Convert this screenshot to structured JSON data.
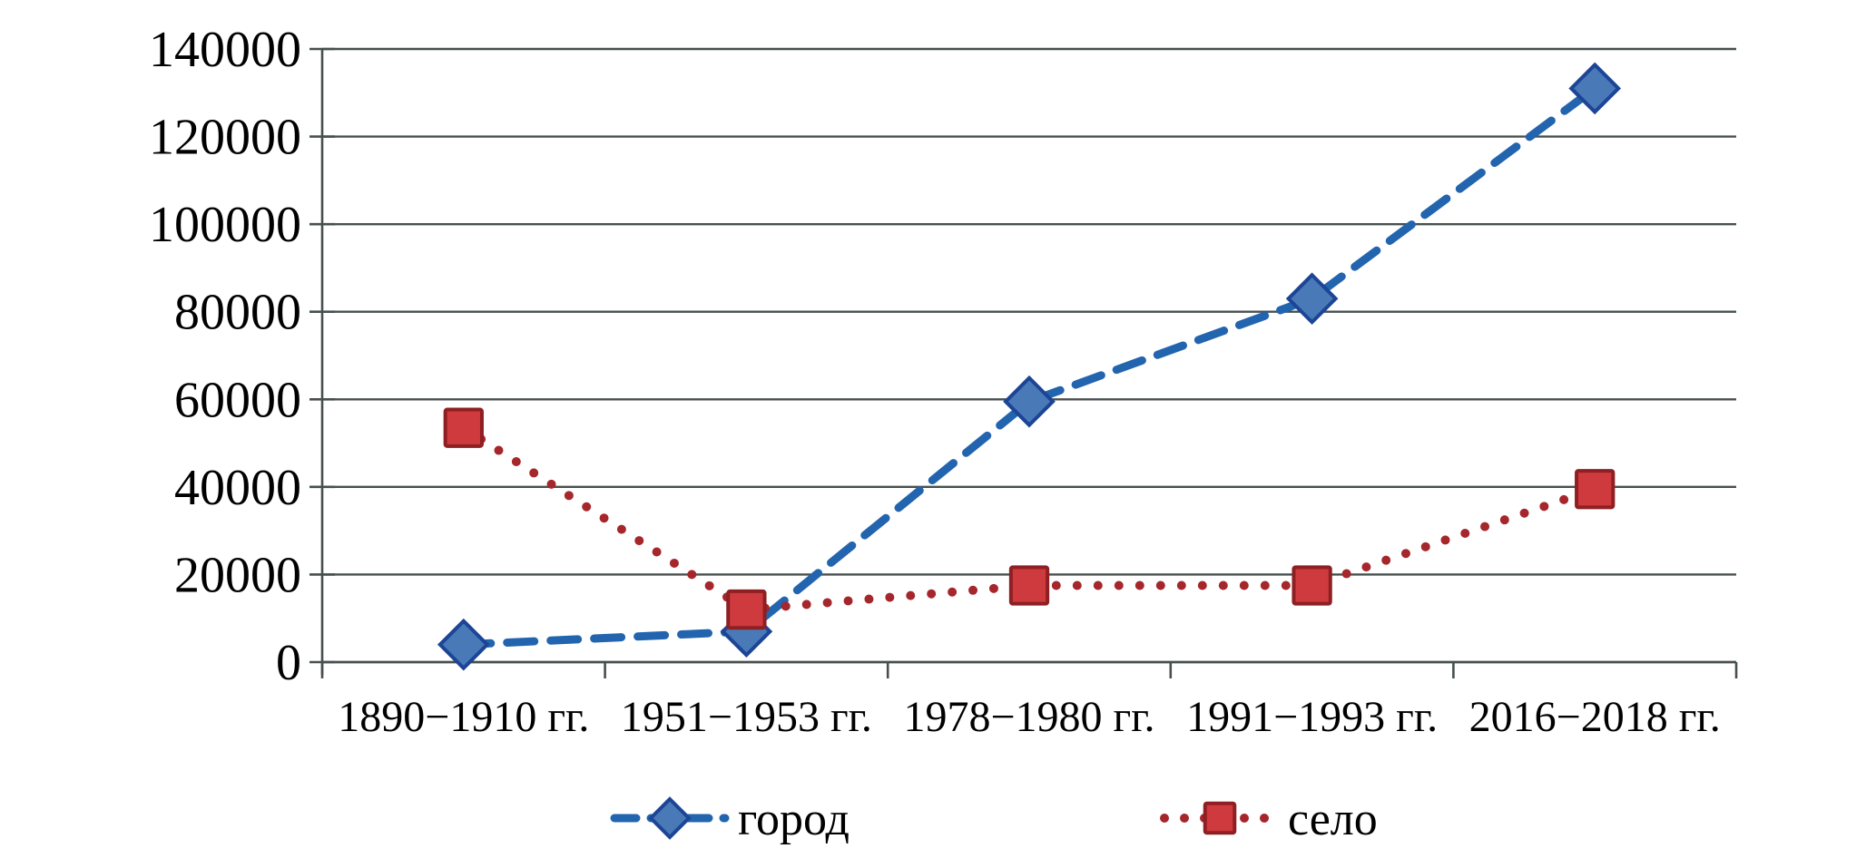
{
  "chart_data": {
    "type": "line",
    "title": "",
    "xlabel": "",
    "ylabel": "",
    "categories": [
      "1890−1910 гг.",
      "1951−1953 гг.",
      "1978−1980 гг.",
      "1991−1993 гг.",
      "2016−2018 гг."
    ],
    "series": [
      {
        "name": "город",
        "values": [
          4000,
          7000,
          59500,
          83000,
          131000
        ],
        "line_color": "#2264ae",
        "line_style": "dashed",
        "marker": "diamond",
        "marker_fill": "#4a79b8",
        "marker_stroke": "#1c4596"
      },
      {
        "name": "село",
        "values": [
          53500,
          12000,
          17500,
          17500,
          39500
        ],
        "line_color": "#a5262b",
        "line_style": "dotted",
        "marker": "square",
        "marker_fill": "#cf3a3e",
        "marker_stroke": "#8e1f22"
      }
    ],
    "ylim": [
      0,
      140000
    ],
    "y_tick_step": 20000,
    "y_tick_labels": [
      "0",
      "20000",
      "40000",
      "60000",
      "80000",
      "100000",
      "120000",
      "140000"
    ],
    "grid": "horizontal",
    "legend_position": "bottom",
    "colors": {
      "axis": "#474f4f",
      "gridline": "#474f4f",
      "text": "#000000",
      "background": "#ffffff"
    }
  }
}
